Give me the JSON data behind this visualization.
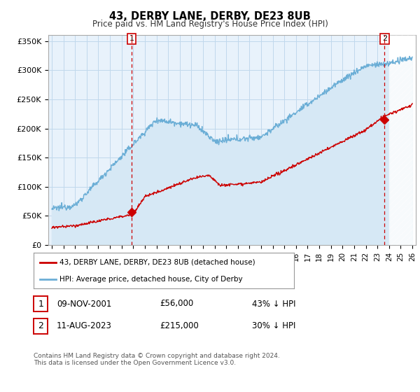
{
  "title": "43, DERBY LANE, DERBY, DE23 8UB",
  "subtitle": "Price paid vs. HM Land Registry's House Price Index (HPI)",
  "ylim": [
    0,
    360000
  ],
  "yticks": [
    0,
    50000,
    100000,
    150000,
    200000,
    250000,
    300000,
    350000
  ],
  "ytick_labels": [
    "£0",
    "£50K",
    "£100K",
    "£150K",
    "£200K",
    "£250K",
    "£300K",
    "£350K"
  ],
  "hpi_color": "#6baed6",
  "hpi_fill_color": "#d6e8f5",
  "price_color": "#cc0000",
  "dashed_color": "#cc0000",
  "marker1_x": 2001.87,
  "marker1_y": 56000,
  "marker2_x": 2023.62,
  "marker2_y": 215000,
  "annotation1": "1",
  "annotation2": "2",
  "legend_label1": "43, DERBY LANE, DERBY, DE23 8UB (detached house)",
  "legend_label2": "HPI: Average price, detached house, City of Derby",
  "table_row1": [
    "1",
    "09-NOV-2001",
    "£56,000",
    "43% ↓ HPI"
  ],
  "table_row2": [
    "2",
    "11-AUG-2023",
    "£215,000",
    "30% ↓ HPI"
  ],
  "footer": "Contains HM Land Registry data © Crown copyright and database right 2024.\nThis data is licensed under the Open Government Licence v3.0.",
  "bg_color": "#ffffff",
  "plot_bg_color": "#e8f2fb",
  "grid_color": "#c0d8ec",
  "hatch_start": 2024.0,
  "xmin": 1994.7,
  "xmax": 2026.3
}
